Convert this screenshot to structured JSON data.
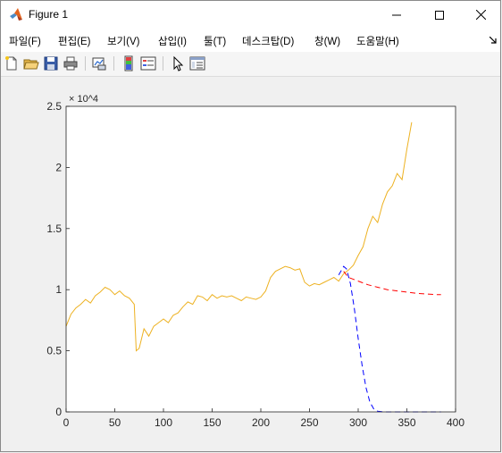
{
  "window": {
    "title": "Figure 1"
  },
  "window_controls": {
    "minimize": "–",
    "maximize": "□",
    "close": "✕"
  },
  "menu": {
    "items": [
      "파일(F)",
      "편집(E)",
      "보기(V)",
      "삽입(I)",
      "툴(T)",
      "데스크탑(D)",
      "창(W)",
      "도움말(H)"
    ],
    "overflow_icon": "dock-arrow-icon"
  },
  "toolbar": {
    "icons": [
      "new-figure-icon",
      "open-file-icon",
      "save-icon",
      "print-icon",
      "link-plot-icon",
      "insert-colorbar-icon",
      "insert-legend-icon",
      "edit-plot-pointer-icon",
      "property-inspector-icon"
    ]
  },
  "colors": {
    "actual": "#edb120",
    "forecast_a": "#ff0000",
    "forecast_b": "#0000ff"
  },
  "chart_data": {
    "type": "line",
    "title": "",
    "xlabel": "",
    "ylabel": "",
    "xlim": [
      0,
      400
    ],
    "ylim": [
      0,
      25000
    ],
    "exponent_label": "× 10^4",
    "x_ticks": [
      "0",
      "50",
      "100",
      "150",
      "200",
      "250",
      "300",
      "350",
      "400"
    ],
    "y_ticks": [
      "0",
      "0.5",
      "1",
      "1.5",
      "2",
      "2.5"
    ],
    "grid": false,
    "legend": "none",
    "series": [
      {
        "color": "#edb120",
        "style": "solid",
        "x": [
          0,
          5,
          10,
          15,
          20,
          25,
          30,
          35,
          40,
          45,
          50,
          55,
          60,
          65,
          70,
          72,
          75,
          80,
          85,
          90,
          95,
          100,
          105,
          110,
          115,
          120,
          125,
          130,
          135,
          140,
          145,
          150,
          155,
          160,
          165,
          170,
          175,
          180,
          185,
          190,
          195,
          200,
          205,
          210,
          215,
          220,
          225,
          230,
          235,
          240,
          245,
          250,
          255,
          260,
          265,
          270,
          275,
          280,
          285,
          290,
          295,
          300,
          305,
          310,
          315,
          320,
          325,
          330,
          335,
          340,
          345,
          350,
          355
        ],
        "y": [
          7000,
          8000,
          8500,
          8800,
          9200,
          8900,
          9500,
          9800,
          10200,
          10000,
          9600,
          9900,
          9500,
          9300,
          8800,
          5000,
          5200,
          6800,
          6200,
          7000,
          7300,
          7600,
          7300,
          7900,
          8100,
          8600,
          9000,
          8800,
          9500,
          9400,
          9100,
          9600,
          9300,
          9500,
          9400,
          9500,
          9300,
          9100,
          9400,
          9300,
          9200,
          9400,
          9900,
          11000,
          11500,
          11700,
          11900,
          11800,
          11600,
          11700,
          10600,
          10300,
          10500,
          10400,
          10600,
          10800,
          11000,
          10700,
          11300,
          11600,
          12000,
          12800,
          13500,
          15000,
          16000,
          15500,
          17000,
          18000,
          18500,
          19500,
          19000,
          21500,
          23700
        ]
      },
      {
        "color": "#ff0000",
        "style": "dashed",
        "x": [
          285,
          290,
          300,
          310,
          320,
          330,
          340,
          350,
          360,
          370,
          380,
          385
        ],
        "y": [
          11500,
          11000,
          10700,
          10400,
          10200,
          10000,
          9900,
          9800,
          9700,
          9650,
          9600,
          9600
        ]
      },
      {
        "color": "#0000ff",
        "style": "dashed",
        "x": [
          280,
          285,
          288,
          292,
          296,
          300,
          304,
          308,
          312,
          316,
          320,
          325,
          330,
          340,
          350,
          360,
          370,
          380,
          385
        ],
        "y": [
          11200,
          11900,
          11700,
          10500,
          8500,
          6000,
          3800,
          2000,
          800,
          250,
          60,
          10,
          0,
          0,
          0,
          0,
          0,
          0,
          0
        ]
      }
    ]
  }
}
